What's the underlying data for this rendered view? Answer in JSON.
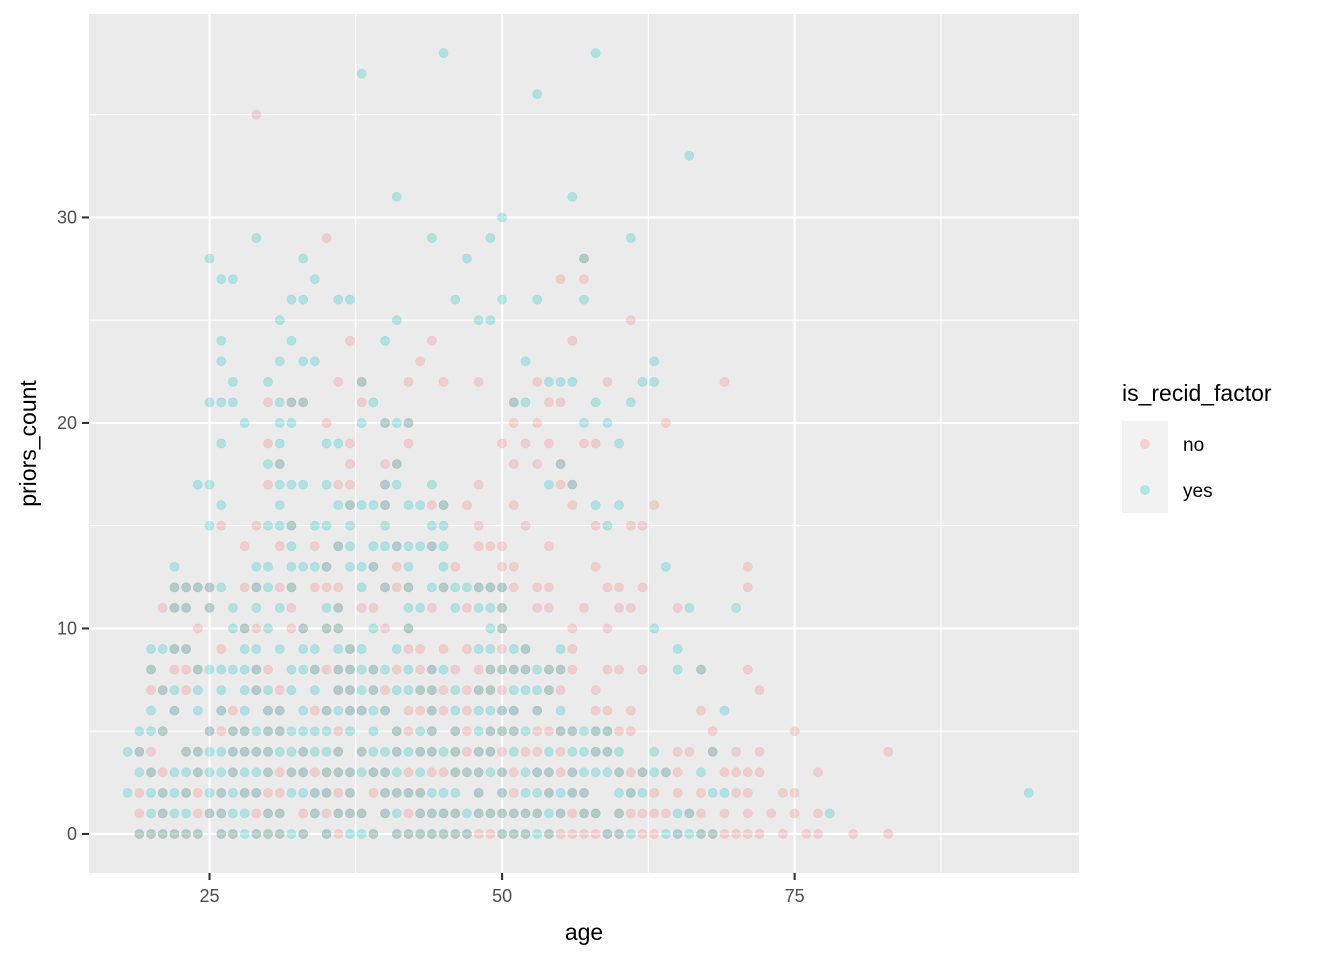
{
  "chart_data": {
    "type": "scatter",
    "title": "",
    "xlabel": "age",
    "ylabel": "priors_count",
    "xlim": [
      14.7,
      99.3
    ],
    "ylim": [
      -1.9,
      39.9
    ],
    "x_ticks": [
      25,
      50,
      75
    ],
    "y_ticks": [
      0,
      10,
      20,
      30
    ],
    "x_tick_labels": [
      "25",
      "50",
      "75"
    ],
    "y_tick_labels": [
      "0",
      "10",
      "20",
      "30"
    ],
    "grid": true,
    "point_alpha": 0.25,
    "legend": {
      "title": "is_recid_factor",
      "placement": "right",
      "entries": [
        {
          "label": "no",
          "color": "#F8766D"
        },
        {
          "label": "yes",
          "color": "#00BFC4"
        }
      ]
    },
    "colors": {
      "panel": "#EBEBEB",
      "grid": "#FFFFFF",
      "no": "#F8766D",
      "yes": "#00BFC4"
    },
    "series": [
      {
        "name": "no",
        "color": "#F8766D",
        "dense_blocks": [
          {
            "x": [
              19,
              69
            ],
            "y": [
              0,
              1
            ],
            "p": 0.75
          },
          {
            "x": [
              70,
              72
            ],
            "y": [
              0,
              1
            ],
            "p": 0.5
          },
          {
            "x": [
              19,
              65
            ],
            "y": [
              2,
              4
            ],
            "p": 0.6
          },
          {
            "x": [
              66,
              72
            ],
            "y": [
              2,
              4
            ],
            "p": 0.35
          },
          {
            "x": [
              20,
              62
            ],
            "y": [
              5,
              8
            ],
            "p": 0.5
          },
          {
            "x": [
              21,
              60
            ],
            "y": [
              9,
              12
            ],
            "p": 0.35
          },
          {
            "x": [
              24,
              58
            ],
            "y": [
              13,
              16
            ],
            "p": 0.2
          },
          {
            "x": [
              30,
              56
            ],
            "y": [
              17,
              22
            ],
            "p": 0.1
          }
        ],
        "points": [
          [
            29,
            35
          ],
          [
            35,
            29
          ],
          [
            37,
            24
          ],
          [
            38,
            22
          ],
          [
            40,
            20
          ],
          [
            41,
            18
          ],
          [
            42,
            19
          ],
          [
            42,
            20
          ],
          [
            43,
            23
          ],
          [
            44,
            24
          ],
          [
            45,
            16
          ],
          [
            46,
            13
          ],
          [
            48,
            17
          ],
          [
            49,
            12
          ],
          [
            51,
            20
          ],
          [
            51,
            18
          ],
          [
            52,
            19
          ],
          [
            53,
            18
          ],
          [
            54,
            21
          ],
          [
            55,
            27
          ],
          [
            55,
            21
          ],
          [
            56,
            24
          ],
          [
            56,
            17
          ],
          [
            57,
            27
          ],
          [
            57,
            28
          ],
          [
            57,
            19
          ],
          [
            58,
            15
          ],
          [
            58,
            13
          ],
          [
            60,
            12
          ],
          [
            60,
            11
          ],
          [
            61,
            25
          ],
          [
            61,
            11
          ],
          [
            61,
            15
          ],
          [
            62,
            12
          ],
          [
            62,
            15
          ],
          [
            63,
            16
          ],
          [
            64,
            20
          ],
          [
            65,
            11
          ],
          [
            67,
            8
          ],
          [
            67,
            6
          ],
          [
            68,
            4
          ],
          [
            68,
            5
          ],
          [
            69,
            22
          ],
          [
            69,
            3
          ],
          [
            70,
            2
          ],
          [
            71,
            13
          ],
          [
            71,
            12
          ],
          [
            71,
            8
          ],
          [
            71,
            3
          ],
          [
            72,
            7
          ],
          [
            72,
            3
          ],
          [
            73,
            1
          ],
          [
            74,
            0
          ],
          [
            74,
            2
          ],
          [
            75,
            5
          ],
          [
            75,
            2
          ],
          [
            75,
            1
          ],
          [
            76,
            0
          ],
          [
            77,
            3
          ],
          [
            77,
            1
          ],
          [
            77,
            0
          ],
          [
            80,
            0
          ],
          [
            83,
            4
          ],
          [
            83,
            0
          ],
          [
            59,
            22
          ],
          [
            58,
            19
          ],
          [
            53,
            20
          ],
          [
            50,
            14
          ],
          [
            47,
            16
          ],
          [
            44,
            14
          ],
          [
            39,
            13
          ],
          [
            36,
            14
          ],
          [
            34,
            12
          ],
          [
            32,
            12
          ],
          [
            28,
            14
          ],
          [
            26,
            15
          ],
          [
            25,
            12
          ],
          [
            23,
            12
          ]
        ]
      },
      {
        "name": "yes",
        "color": "#00BFC4",
        "dense_blocks": [
          {
            "x": [
              19,
              60
            ],
            "y": [
              0,
              5
            ],
            "p": 0.75
          },
          {
            "x": [
              61,
              69
            ],
            "y": [
              0,
              4
            ],
            "p": 0.35
          },
          {
            "x": [
              20,
              55
            ],
            "y": [
              6,
              9
            ],
            "p": 0.6
          },
          {
            "x": [
              22,
              50
            ],
            "y": [
              10,
              12
            ],
            "p": 0.5
          },
          {
            "x": [
              24,
              45
            ],
            "y": [
              13,
              17
            ],
            "p": 0.4
          },
          {
            "x": [
              25,
              42
            ],
            "y": [
              18,
              22
            ],
            "p": 0.2
          },
          {
            "x": [
              26,
              38
            ],
            "y": [
              23,
              27
            ],
            "p": 0.08
          }
        ],
        "points": [
          [
            18,
            4
          ],
          [
            18,
            2
          ],
          [
            19,
            5
          ],
          [
            20,
            9
          ],
          [
            20,
            8
          ],
          [
            21,
            7
          ],
          [
            22,
            13
          ],
          [
            22,
            12
          ],
          [
            22,
            11
          ],
          [
            24,
            17
          ],
          [
            25,
            21
          ],
          [
            25,
            28
          ],
          [
            26,
            27
          ],
          [
            26,
            24
          ],
          [
            27,
            27
          ],
          [
            27,
            21
          ],
          [
            28,
            20
          ],
          [
            29,
            29
          ],
          [
            30,
            22
          ],
          [
            31,
            25
          ],
          [
            32,
            26
          ],
          [
            33,
            28
          ],
          [
            34,
            27
          ],
          [
            36,
            26
          ],
          [
            37,
            26
          ],
          [
            38,
            37
          ],
          [
            39,
            21
          ],
          [
            40,
            24
          ],
          [
            41,
            31
          ],
          [
            41,
            25
          ],
          [
            43,
            16
          ],
          [
            44,
            29
          ],
          [
            45,
            38
          ],
          [
            46,
            26
          ],
          [
            47,
            28
          ],
          [
            48,
            25
          ],
          [
            49,
            29
          ],
          [
            49,
            25
          ],
          [
            50,
            30
          ],
          [
            50,
            26
          ],
          [
            51,
            21
          ],
          [
            52,
            23
          ],
          [
            52,
            21
          ],
          [
            53,
            36
          ],
          [
            53,
            26
          ],
          [
            54,
            22
          ],
          [
            55,
            22
          ],
          [
            56,
            31
          ],
          [
            56,
            22
          ],
          [
            57,
            26
          ],
          [
            57,
            28
          ],
          [
            58,
            38
          ],
          [
            58,
            21
          ],
          [
            59,
            20
          ],
          [
            60,
            19
          ],
          [
            60,
            16
          ],
          [
            61,
            29
          ],
          [
            61,
            21
          ],
          [
            62,
            22
          ],
          [
            63,
            23
          ],
          [
            63,
            22
          ],
          [
            63,
            10
          ],
          [
            64,
            13
          ],
          [
            65,
            9
          ],
          [
            65,
            8
          ],
          [
            66,
            33
          ],
          [
            66,
            11
          ],
          [
            67,
            8
          ],
          [
            69,
            6
          ],
          [
            70,
            11
          ],
          [
            78,
            1
          ],
          [
            95,
            2
          ],
          [
            54,
            17
          ],
          [
            55,
            18
          ],
          [
            56,
            17
          ],
          [
            57,
            20
          ],
          [
            58,
            16
          ],
          [
            59,
            15
          ]
        ]
      }
    ]
  }
}
